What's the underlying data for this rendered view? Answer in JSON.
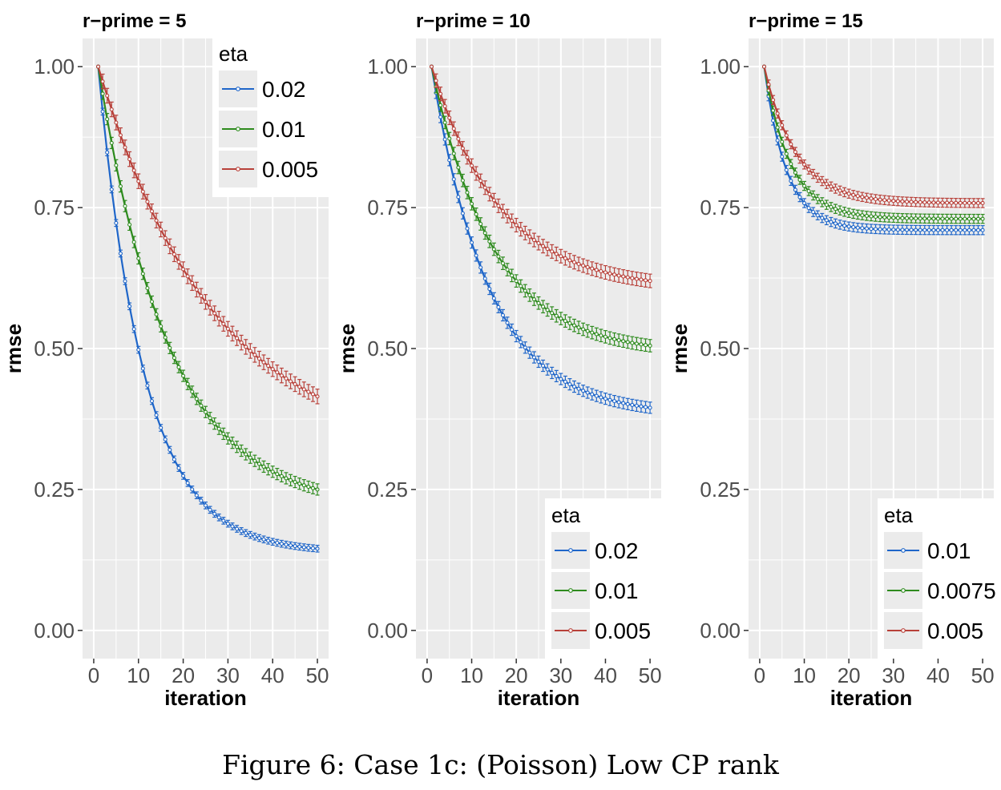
{
  "caption": "Figure 6: Case 1c: (Poisson) Low CP rank",
  "colors": {
    "panel_bg": "#ebebeb",
    "grid": "#ffffff",
    "blue": "#1f66c9",
    "green": "#2e8b1e",
    "red": "#b8413a"
  },
  "chart_data": [
    {
      "type": "line",
      "title": "r−prime = 5",
      "xlabel": "iteration",
      "ylabel": "rmse",
      "xlim": [
        0,
        50
      ],
      "ylim": [
        0,
        1
      ],
      "xticks": [
        "0",
        "10",
        "20",
        "30",
        "40",
        "50"
      ],
      "yticks": [
        "0.00",
        "0.25",
        "0.50",
        "0.75",
        "1.00"
      ],
      "legend_title": "eta",
      "legend_position": "top-right",
      "error_bars": true,
      "series": [
        {
          "name": "0.02",
          "color": "#1f66c9",
          "x_start": 1,
          "x_end": 50,
          "y_start": 1.0,
          "y_end": 0.145,
          "k": 0.097,
          "err": 0.006
        },
        {
          "name": "0.01",
          "color": "#2e8b1e",
          "x_start": 1,
          "x_end": 50,
          "y_start": 1.0,
          "y_end": 0.25,
          "k": 0.063,
          "err": 0.01
        },
        {
          "name": "0.005",
          "color": "#b8413a",
          "x_start": 1,
          "x_end": 50,
          "y_start": 1.0,
          "y_end": 0.415,
          "k": 0.039,
          "err": 0.013
        }
      ]
    },
    {
      "type": "line",
      "title": "r−prime = 10",
      "xlabel": "iteration",
      "ylabel": "rmse",
      "xlim": [
        0,
        50
      ],
      "ylim": [
        0,
        1
      ],
      "xticks": [
        "0",
        "10",
        "20",
        "30",
        "40",
        "50"
      ],
      "yticks": [
        "0.00",
        "0.25",
        "0.50",
        "0.75",
        "1.00"
      ],
      "legend_title": "eta",
      "legend_position": "bottom-right",
      "error_bars": true,
      "series": [
        {
          "name": "0.02",
          "color": "#1f66c9",
          "x_start": 1,
          "x_end": 50,
          "y_start": 1.0,
          "y_end": 0.395,
          "k": 0.078,
          "err": 0.01
        },
        {
          "name": "0.01",
          "color": "#2e8b1e",
          "x_start": 1,
          "x_end": 50,
          "y_start": 1.0,
          "y_end": 0.505,
          "k": 0.072,
          "err": 0.011
        },
        {
          "name": "0.005",
          "color": "#b8413a",
          "x_start": 1,
          "x_end": 50,
          "y_start": 1.0,
          "y_end": 0.62,
          "k": 0.065,
          "err": 0.012
        }
      ]
    },
    {
      "type": "line",
      "title": "r−prime = 15",
      "xlabel": "iteration",
      "ylabel": "rmse",
      "xlim": [
        0,
        50
      ],
      "ylim": [
        0,
        1
      ],
      "xticks": [
        "0",
        "10",
        "20",
        "30",
        "40",
        "50"
      ],
      "yticks": [
        "0.00",
        "0.25",
        "0.50",
        "0.75",
        "1.00"
      ],
      "legend_title": "eta",
      "legend_position": "bottom-right",
      "error_bars": true,
      "series": [
        {
          "name": "0.01",
          "color": "#1f66c9",
          "x_start": 1,
          "x_end": 50,
          "y_start": 1.0,
          "y_end": 0.71,
          "k": 0.2,
          "err": 0.008
        },
        {
          "name": "0.0075",
          "color": "#2e8b1e",
          "x_start": 1,
          "x_end": 50,
          "y_start": 1.0,
          "y_end": 0.73,
          "k": 0.17,
          "err": 0.008
        },
        {
          "name": "0.005",
          "color": "#b8413a",
          "x_start": 1,
          "x_end": 50,
          "y_start": 1.0,
          "y_end": 0.758,
          "k": 0.14,
          "err": 0.008
        }
      ]
    }
  ]
}
